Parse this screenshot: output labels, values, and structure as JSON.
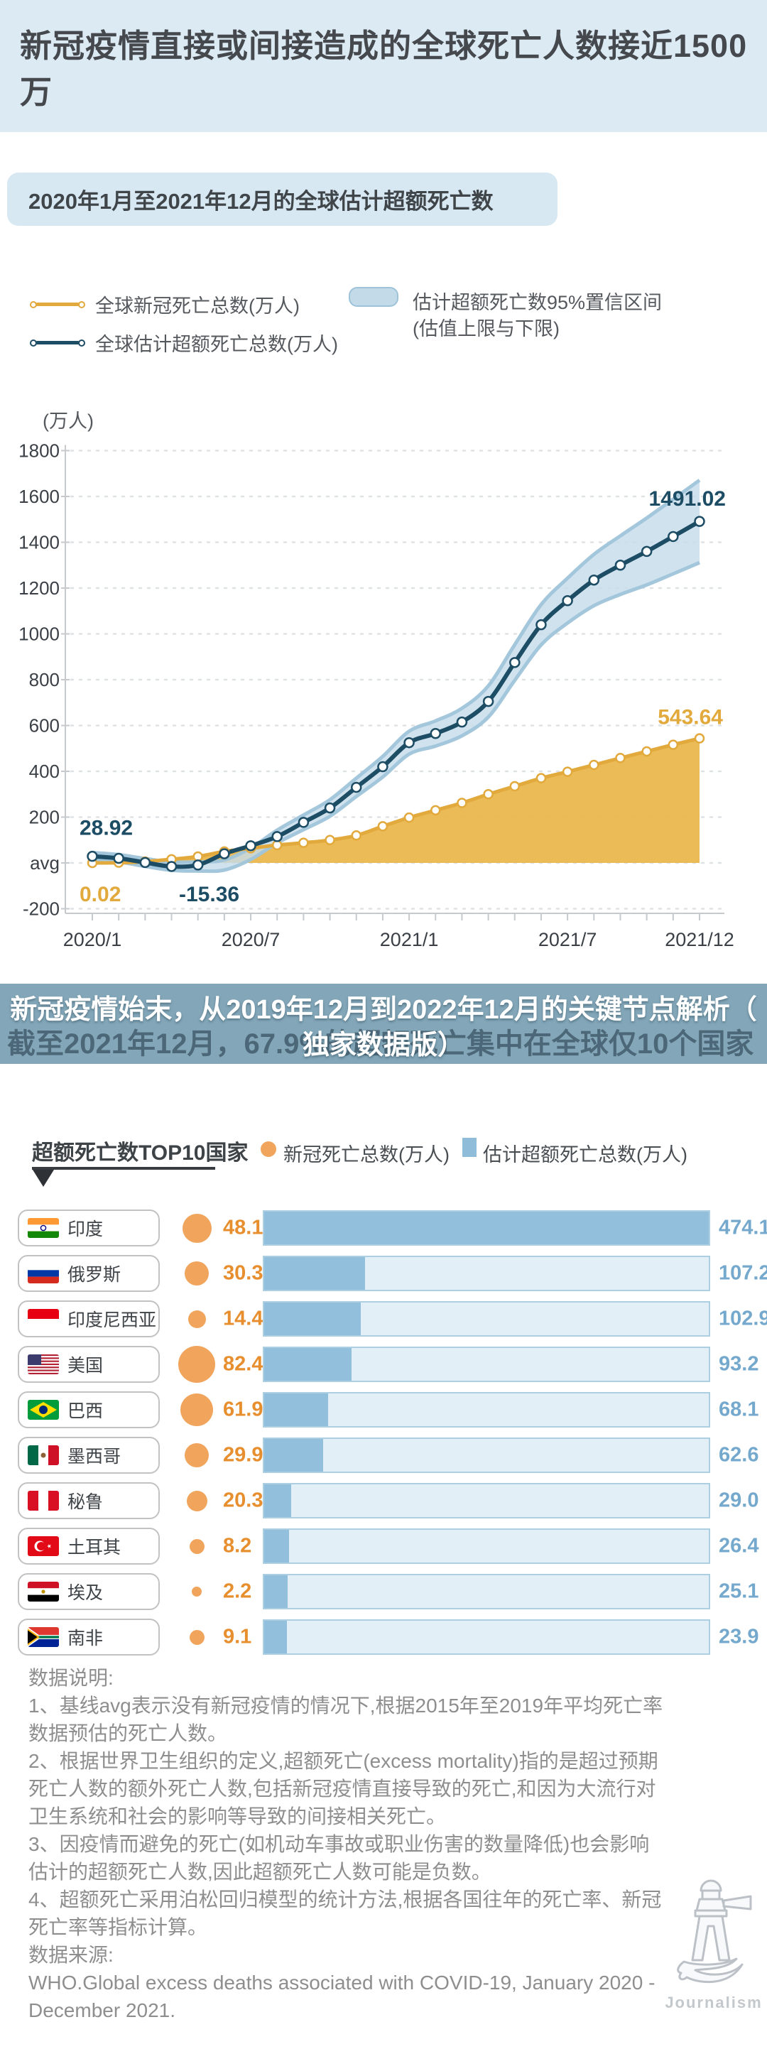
{
  "header": {
    "title": "新冠疫情直接或间接造成的全球死亡人数接近1500万"
  },
  "subtitle": {
    "text": "2020年1月至2021年12月的全球估计超额死亡数"
  },
  "legend": {
    "covid_label": "全球新冠死亡总数(万人)",
    "excess_label": "全球估计超额死亡总数(万人)",
    "ci_label_line1": "估计超额死亡数95%置信区间",
    "ci_label_line2": "(估值上限与下限)"
  },
  "banner": {
    "overlay_line1": "新冠疫情始末，从2019年12月到2022年12月的关键节点解析（",
    "overlay_line2": "独家数据版）",
    "background_heading": "截至2021年12月，67.9%的超额死亡集中在全球仅10个国家"
  },
  "top10": {
    "heading": "超额死亡数TOP10国家",
    "legend_covid": "新冠死亡总数(万人)",
    "legend_excess": "估计超额死亡总数(万人)"
  },
  "notes": {
    "label": "数据说明:",
    "n1": "1、基线avg表示没有新冠疫情的情况下,根据2015年至2019年平均死亡率数据预估的死亡人数。",
    "n2": "2、根据世界卫生组织的定义,超额死亡(excess mortality)指的是超过预期死亡人数的额外死亡人数,包括新冠疫情直接导致的死亡,和因为大流行对卫生系统和社会的影响等导致的间接相关死亡。",
    "n3": "3、因疫情而避免的死亡(如机动车事故或职业伤害的数量降低)也会影响估计的超额死亡人数,因此超额死亡人数可能是负数。",
    "n4": "4、超额死亡采用泊松回归模型的统计方法,根据各国往年的死亡率、新冠死亡率等指标计算。",
    "source_label": "数据来源:",
    "source": "WHO.Global excess deaths associated with COVID-19, January 2020 - December 2021."
  },
  "logo": {
    "brand": "Journalism"
  },
  "colors": {
    "accent_gold": "#E2A93C",
    "gold_fill": "#E9B84F",
    "accent_navy": "#1D4C65",
    "band_fill": "#C6DCEA",
    "band_edge": "#9FC4D9",
    "grid": "#DFE2E4",
    "axis": "#C7CACD",
    "tick_text": "#3A4046",
    "bar_fill": "#92BFDB",
    "bar_track": "#E2EFF6",
    "bar_border": "#AECFE2",
    "bar_value_text": "#74A9CD",
    "circle_orange": "#F0A45C",
    "orange_text": "#E78F2F",
    "banner_bg": "#83A7B9",
    "header_bg": "#DCEAF4",
    "subtitle_bg": "#D7E8F3"
  },
  "chart_data": [
    {
      "type": "line",
      "title": "2020年1月至2021年12月的全球估计超额死亡数",
      "unit_label": "(万人)",
      "x": [
        "2020/1",
        "2020/2",
        "2020/3",
        "2020/4",
        "2020/5",
        "2020/6",
        "2020/7",
        "2020/8",
        "2020/9",
        "2020/10",
        "2020/11",
        "2020/12",
        "2021/1",
        "2021/2",
        "2021/3",
        "2021/4",
        "2021/5",
        "2021/6",
        "2021/7",
        "2021/8",
        "2021/9",
        "2021/10",
        "2021/11",
        "2021/12"
      ],
      "x_tick_labels": [
        "2020/1",
        "2020/7",
        "2021/1",
        "2021/7",
        "2021/12"
      ],
      "x_tick_index": [
        0,
        6,
        12,
        18,
        23
      ],
      "ylim": [
        -200,
        1800
      ],
      "ytick_step": 200,
      "zero_tick_label": "avg",
      "grid": true,
      "legend_position": "top",
      "series": [
        {
          "name": "全球新冠死亡总数(万人)",
          "kind": "line",
          "area": true,
          "color_key": "accent_gold",
          "values": [
            0.02,
            1,
            6,
            16,
            28,
            50,
            64,
            78,
            88,
            100,
            120,
            160,
            198,
            230,
            262,
            300,
            335,
            370,
            398,
            428,
            458,
            487,
            516,
            543.64
          ],
          "first_label": "0.02",
          "last_label": "543.64"
        },
        {
          "name": "全球估计超额死亡总数(万人)",
          "kind": "line",
          "color_key": "accent_navy",
          "values": [
            28.92,
            20,
            2,
            -15.36,
            -9,
            40,
            75,
            115,
            177,
            240,
            330,
            420,
            525,
            565,
            615,
            705,
            875,
            1040,
            1145,
            1235,
            1300,
            1360,
            1425,
            1491.02
          ],
          "first_label": "28.92",
          "min_label": "-15.36",
          "last_label": "1491.02"
        },
        {
          "name": "估计超额死亡数95%置信区间(估值上限与下限)",
          "kind": "band",
          "color_key": "band_fill",
          "upper": [
            44.92,
            36,
            19,
            4,
            4.64,
            13,
            65,
            143,
            209,
            276,
            370,
            465,
            575,
            620,
            675,
            773,
            953,
            1128,
            1243,
            1347,
            1428,
            1506,
            1588,
            1671.02
          ],
          "lower": [
            12.92,
            4,
            -15,
            -32,
            -35.36,
            -31,
            15,
            87,
            145,
            204,
            290,
            375,
            475,
            510,
            555,
            637,
            797,
            952,
            1047,
            1123,
            1172,
            1214,
            1262,
            1311.02
          ]
        }
      ]
    },
    {
      "type": "bar",
      "title": "超额死亡数TOP10国家",
      "orientation": "horizontal",
      "legend": [
        "新冠死亡总数(万人)",
        "估计超额死亡总数(万人)"
      ],
      "xlim": [
        0,
        474.1
      ],
      "rows": [
        {
          "country": "印度",
          "flag": "in",
          "covid_deaths": 48.1,
          "excess_deaths": 474.1
        },
        {
          "country": "俄罗斯",
          "flag": "ru",
          "covid_deaths": 30.3,
          "excess_deaths": 107.2
        },
        {
          "country": "印度尼西亚",
          "flag": "id",
          "covid_deaths": 14.4,
          "excess_deaths": 102.9
        },
        {
          "country": "美国",
          "flag": "us",
          "covid_deaths": 82.4,
          "excess_deaths": 93.2
        },
        {
          "country": "巴西",
          "flag": "br",
          "covid_deaths": 61.9,
          "excess_deaths": 68.1
        },
        {
          "country": "墨西哥",
          "flag": "mx",
          "covid_deaths": 29.9,
          "excess_deaths": 62.6
        },
        {
          "country": "秘鲁",
          "flag": "pe",
          "covid_deaths": 20.3,
          "excess_deaths": 29.0
        },
        {
          "country": "土耳其",
          "flag": "tr",
          "covid_deaths": 8.2,
          "excess_deaths": 26.4
        },
        {
          "country": "埃及",
          "flag": "eg",
          "covid_deaths": 2.2,
          "excess_deaths": 25.1
        },
        {
          "country": "南非",
          "flag": "za",
          "covid_deaths": 9.1,
          "excess_deaths": 23.9
        }
      ]
    }
  ]
}
